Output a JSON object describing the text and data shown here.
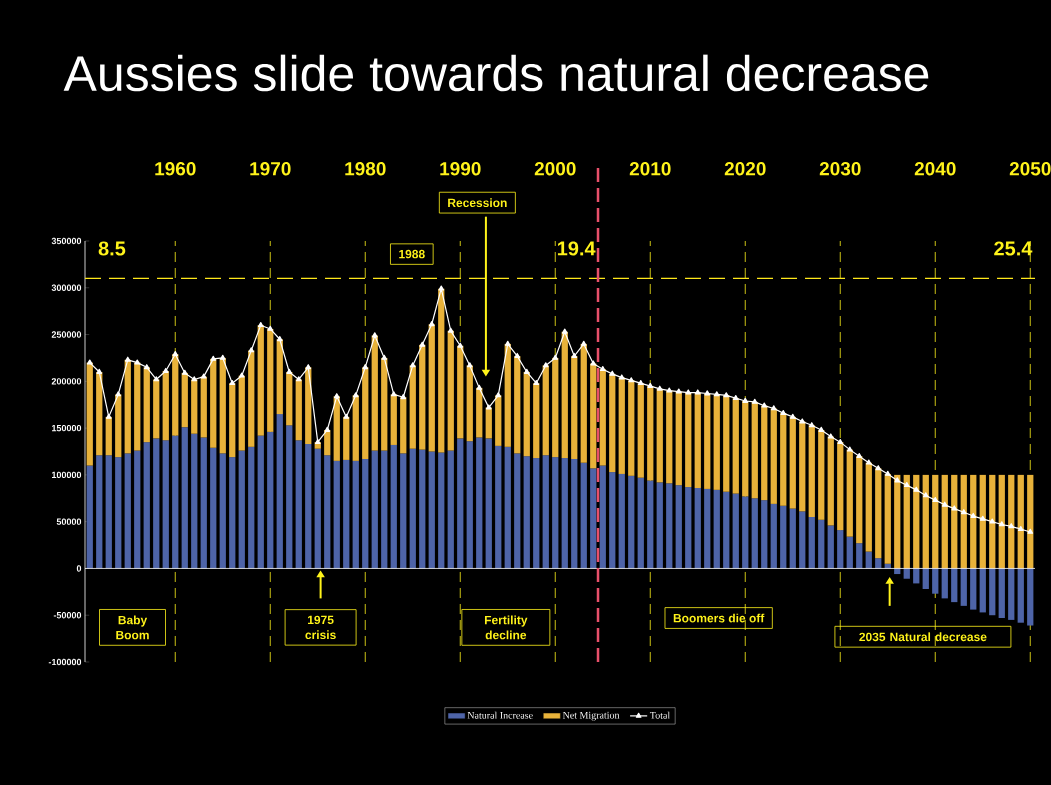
{
  "chart_data": {
    "type": "bar",
    "title": "Aussies slide towards natural decrease",
    "stacked": true,
    "x": [
      1951,
      1952,
      1953,
      1954,
      1955,
      1956,
      1957,
      1958,
      1959,
      1960,
      1961,
      1962,
      1963,
      1964,
      1965,
      1966,
      1967,
      1968,
      1969,
      1970,
      1971,
      1972,
      1973,
      1974,
      1975,
      1976,
      1977,
      1978,
      1979,
      1980,
      1981,
      1982,
      1983,
      1984,
      1985,
      1986,
      1987,
      1988,
      1989,
      1990,
      1991,
      1992,
      1993,
      1994,
      1995,
      1996,
      1997,
      1998,
      1999,
      2000,
      2001,
      2002,
      2003,
      2004,
      2005,
      2006,
      2007,
      2008,
      2009,
      2010,
      2011,
      2012,
      2013,
      2014,
      2015,
      2016,
      2017,
      2018,
      2019,
      2020,
      2021,
      2022,
      2023,
      2024,
      2025,
      2026,
      2027,
      2028,
      2029,
      2030,
      2031,
      2032,
      2033,
      2034,
      2035,
      2036,
      2037,
      2038,
      2039,
      2040,
      2041,
      2042,
      2043,
      2044,
      2045,
      2046,
      2047,
      2048,
      2049,
      2050
    ],
    "series": [
      {
        "name": "Natural Increase",
        "type": "bar",
        "color": "#4e64a8",
        "values": [
          110000,
          121000,
          121000,
          119000,
          123000,
          126000,
          135000,
          139000,
          137000,
          142000,
          151000,
          144000,
          140000,
          129000,
          123000,
          119000,
          126000,
          130000,
          142000,
          146000,
          165000,
          153000,
          137000,
          133000,
          128000,
          121000,
          115000,
          116000,
          115000,
          117000,
          126000,
          126000,
          132000,
          123000,
          128000,
          127000,
          125000,
          124000,
          126000,
          139000,
          136000,
          140000,
          139000,
          131000,
          130000,
          123000,
          120000,
          118000,
          121000,
          119000,
          118000,
          117000,
          113000,
          107000,
          110000,
          103000,
          101000,
          99000,
          97000,
          94000,
          92000,
          91000,
          89000,
          87000,
          86000,
          85000,
          84000,
          82000,
          80000,
          77000,
          75000,
          73000,
          69000,
          67000,
          64000,
          61000,
          55000,
          52000,
          46000,
          41000,
          34000,
          27000,
          18000,
          11000,
          5000,
          -6000,
          -11000,
          -16000,
          -22000,
          -27000,
          -32000,
          -36000,
          -40000,
          -44000,
          -47000,
          -50000,
          -53000,
          -55000,
          -58000,
          -61000
        ]
      },
      {
        "name": "Net Migration",
        "type": "bar",
        "color": "#e8b23a",
        "values": [
          110000,
          89000,
          41000,
          67000,
          100000,
          94000,
          80000,
          63000,
          74000,
          87000,
          58000,
          58000,
          65000,
          95000,
          102000,
          79000,
          80000,
          103000,
          118000,
          110000,
          80000,
          57000,
          65000,
          82000,
          7000,
          27000,
          69000,
          46000,
          70000,
          98000,
          123000,
          99000,
          54000,
          60000,
          89000,
          112000,
          136000,
          175000,
          128000,
          99000,
          81000,
          53000,
          33000,
          54000,
          110000,
          104000,
          90000,
          80000,
          96000,
          106000,
          135000,
          110000,
          127000,
          112000,
          103000,
          105000,
          103000,
          102000,
          101000,
          101000,
          100000,
          99000,
          100000,
          101000,
          102000,
          102000,
          102000,
          103000,
          102000,
          102000,
          103000,
          101000,
          102000,
          99000,
          98000,
          96000,
          98000,
          96000,
          95000,
          94000,
          93000,
          93000,
          95000,
          96000,
          96000,
          100000,
          100000,
          100000,
          100000,
          100000,
          100000,
          100000,
          100000,
          100000,
          100000,
          100000,
          100000,
          100000,
          100000,
          100000
        ]
      },
      {
        "name": "Total",
        "type": "line",
        "color": "#ffffff",
        "marker": "triangle",
        "values": [
          220000,
          210000,
          162000,
          186000,
          223000,
          220000,
          215000,
          202000,
          211000,
          229000,
          209000,
          202000,
          205000,
          224000,
          225000,
          198000,
          206000,
          233000,
          260000,
          256000,
          245000,
          210000,
          202000,
          215000,
          135000,
          148000,
          184000,
          162000,
          185000,
          215000,
          249000,
          225000,
          186000,
          183000,
          217000,
          239000,
          261000,
          299000,
          254000,
          238000,
          217000,
          193000,
          172000,
          185000,
          240000,
          227000,
          210000,
          198000,
          217000,
          225000,
          253000,
          227000,
          240000,
          219000,
          213000,
          208000,
          204000,
          201000,
          198000,
          195000,
          192000,
          190000,
          189000,
          188000,
          188000,
          187000,
          186000,
          185000,
          182000,
          179000,
          178000,
          174000,
          171000,
          166000,
          162000,
          157000,
          153000,
          148000,
          141000,
          135000,
          127000,
          120000,
          113000,
          107000,
          101000,
          94000,
          89000,
          84000,
          78000,
          73000,
          68000,
          64000,
          60000,
          56000,
          53000,
          50000,
          47000,
          45000,
          42000,
          39000
        ]
      }
    ],
    "xlim": [
      1950.5,
      2050.5
    ],
    "xticks": [
      1960,
      1970,
      1980,
      1990,
      2000,
      2010,
      2020,
      2030,
      2040,
      2050
    ],
    "ylim": [
      -100000,
      350000
    ],
    "yticks": [
      -100000,
      -50000,
      0,
      50000,
      100000,
      150000,
      200000,
      250000,
      300000,
      350000
    ],
    "grid": "x",
    "legend": "bottom",
    "ref_lines": [
      {
        "axis": "y",
        "value": 310000,
        "color": "#ffe81a",
        "line_style": "dashed"
      },
      {
        "axis": "x",
        "value": 2004.5,
        "color": "#e8506a",
        "line_style": "dashed"
      }
    ],
    "annotations": [
      "8.5",
      "19.4",
      "25.4",
      "Recession",
      "1988",
      "Baby Boom",
      "1975 crisis",
      "Fertility decline",
      "Boomers die off",
      "2035 Natural decrease"
    ]
  }
}
